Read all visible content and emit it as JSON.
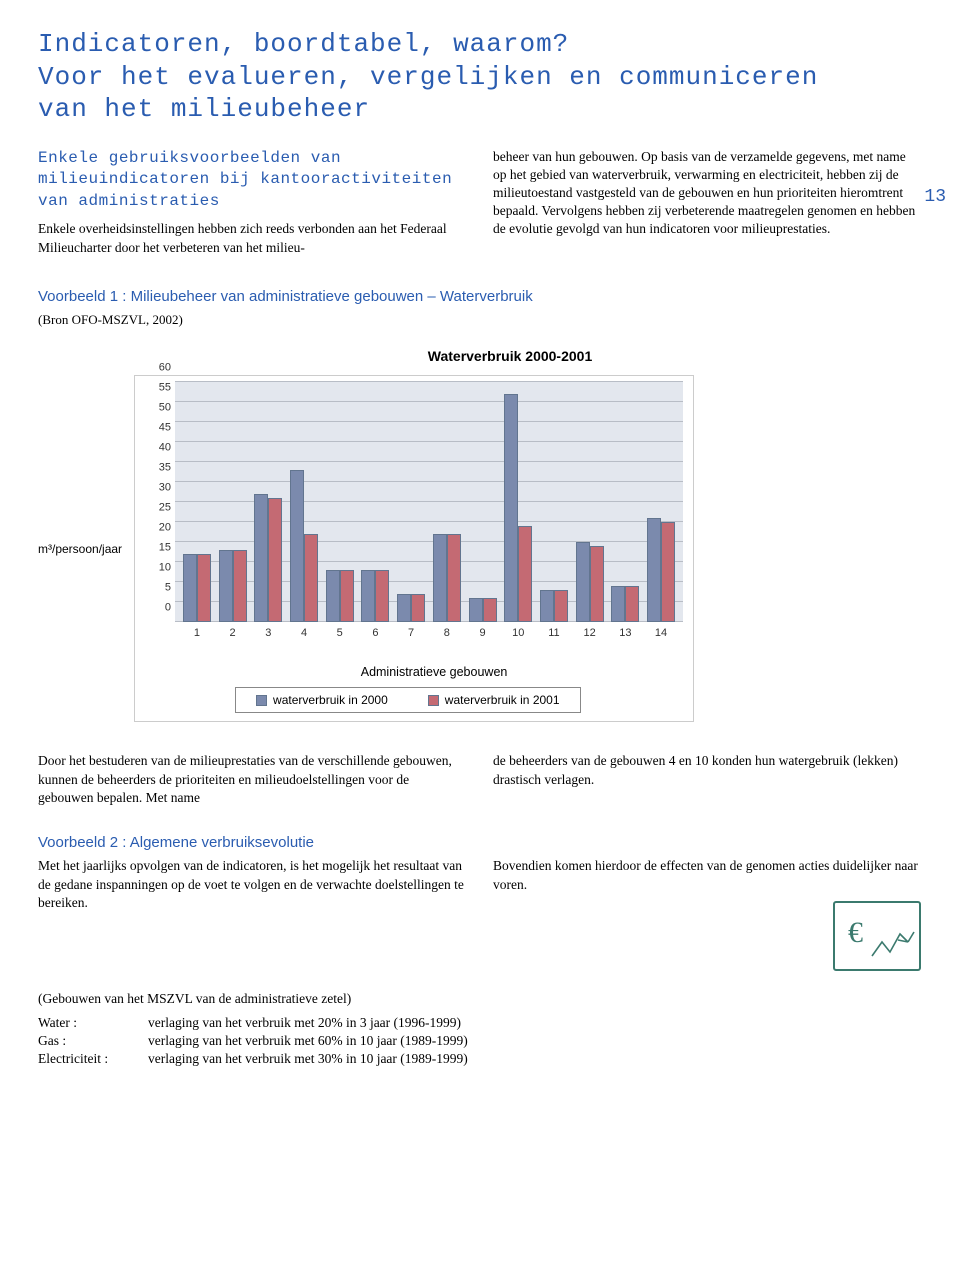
{
  "page_number": "13",
  "title_line1": "Indicatoren, boordtabel, waarom?",
  "title_line2": "Voor het evalueren, vergelijken en communiceren",
  "title_line3": "van het milieubeheer",
  "intro": {
    "heading": "Enkele gebruiksvoorbeelden van milieuindicatoren bij kantooractiviteiten van administraties",
    "col1": "Enkele overheidsinstellingen hebben zich reeds verbonden aan het Federaal Milieucharter door het verbeteren van het milieu-",
    "col2": "beheer van hun gebouwen. Op basis van de verzamelde gegevens, met name op het gebied van waterverbruik, verwarming en electriciteit, hebben zij de milieutoestand vastgesteld van de gebouwen en hun prioriteiten hieromtrent bepaald. Vervolgens hebben zij verbeterende maatregelen genomen en hebben de evolutie gevolgd van hun indicatoren voor milieuprestaties."
  },
  "example1": {
    "title": "Voorbeeld 1 : Milieubeheer van administratieve gebouwen – Waterverbruik",
    "source": "(Bron OFO-MSZVL, 2002)",
    "below_col1": "Door het bestuderen van de milieuprestaties van de verschillende gebouwen, kunnen de beheerders de prioriteiten en milieudoelstellingen voor de gebouwen bepalen. Met name",
    "below_col2": "de beheerders van de gebouwen 4 en 10 konden hun watergebruik (lekken) drastisch verlagen."
  },
  "chart": {
    "title": "Waterverbruik 2000-2001",
    "y_axis_label": "m³/persoon/jaar",
    "x_axis_label": "Administratieve gebouwen",
    "y_ticks": [
      0,
      5,
      10,
      15,
      20,
      25,
      30,
      35,
      40,
      45,
      50,
      55,
      60
    ],
    "y_max": 60,
    "categories": [
      "1",
      "2",
      "3",
      "4",
      "5",
      "6",
      "7",
      "8",
      "9",
      "10",
      "11",
      "12",
      "13",
      "14"
    ],
    "series": [
      {
        "name": "waterverbruik in 2000",
        "color": "#7b8aad",
        "values": [
          17,
          18,
          32,
          38,
          13,
          13,
          7,
          22,
          6,
          57,
          8,
          20,
          9,
          26
        ]
      },
      {
        "name": "waterverbruik in 2001",
        "color": "#c46a73",
        "values": [
          17,
          18,
          31,
          22,
          13,
          13,
          7,
          22,
          6,
          24,
          8,
          19,
          9,
          25
        ]
      }
    ],
    "legend": [
      "waterverbruik in 2000",
      "waterverbruik in 2001"
    ],
    "plot_bg": "#e3e7ee",
    "grid_color": "#b8bdc6",
    "bar_border": "#62758f"
  },
  "example2": {
    "title": "Voorbeeld 2 : Algemene verbruiksevolutie",
    "col1": "Met het jaarlijks opvolgen van de indicatoren, is het mogelijk het resultaat van de gedane inspanningen op de voet te volgen en de verwachte doelstellingen te bereiken.",
    "col2": "Bovendien komen hierdoor de effecten van de genomen acties duidelijker naar voren.",
    "source": "(Gebouwen van het MSZVL van de administratieve zetel)",
    "rows": {
      "water_label": "Water :",
      "water_text": "verlaging van het verbruik met 20% in 3 jaar (1996-1999)",
      "gas_label": "Gas :",
      "gas_text": "verlaging van het verbruik met 60% in 10 jaar (1989-1999)",
      "elec_label": "Electriciteit :",
      "elec_text": "verlaging van het verbruik met 30% in 10 jaar (1989-1999)"
    }
  },
  "illustration": {
    "stroke": "#3b7a6e",
    "euro_stroke": "#3b7a6e"
  }
}
